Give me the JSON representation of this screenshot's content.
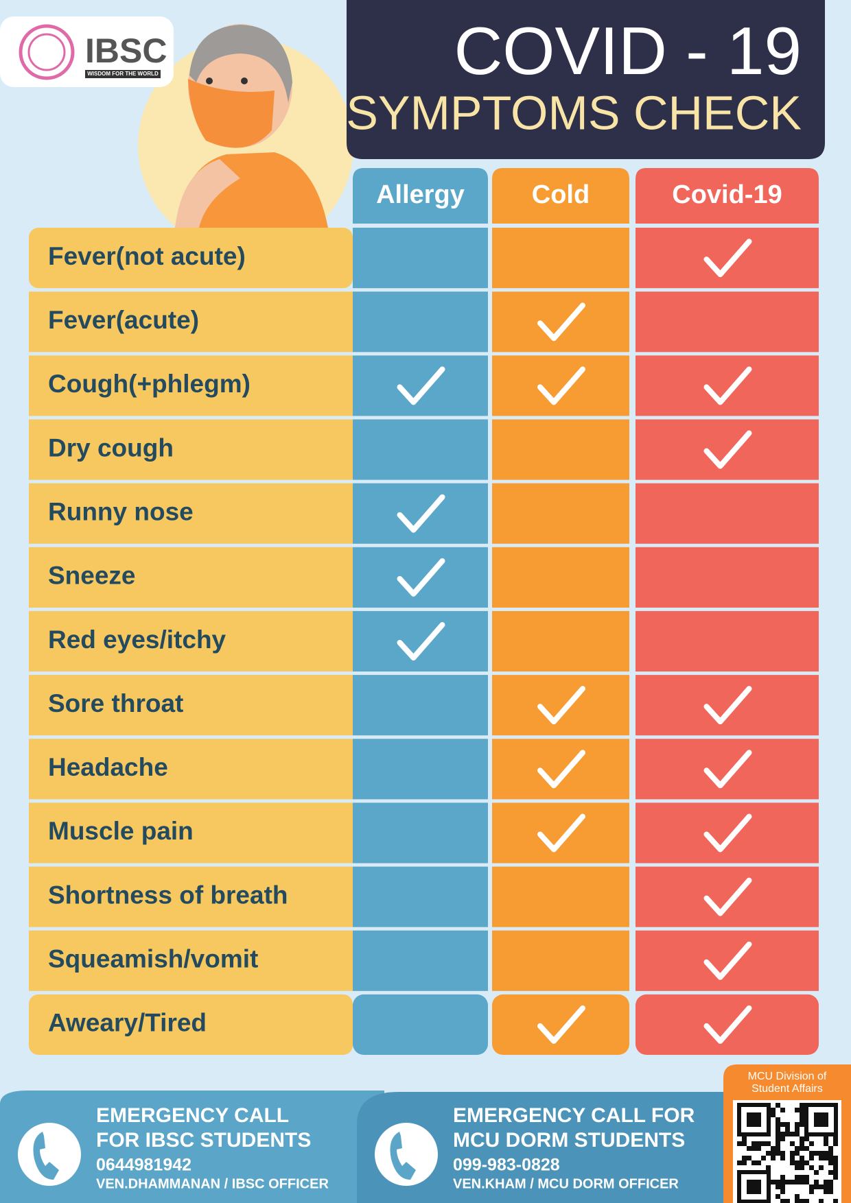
{
  "logo": {
    "name": "IBSC",
    "tagline": "WISDOM FOR THE WORLD"
  },
  "header": {
    "title": "COVID - 19",
    "subtitle": "SYMPTOMS CHECK"
  },
  "table": {
    "columns": [
      "Allergy",
      "Cold",
      "Covid-19"
    ],
    "rows": [
      {
        "label": "Fever(not acute)",
        "checks": [
          false,
          false,
          true
        ]
      },
      {
        "label": "Fever(acute)",
        "checks": [
          false,
          true,
          false
        ]
      },
      {
        "label": "Cough(+phlegm)",
        "checks": [
          true,
          true,
          true
        ]
      },
      {
        "label": "Dry cough",
        "checks": [
          false,
          false,
          true
        ]
      },
      {
        "label": "Runny nose",
        "checks": [
          true,
          false,
          false
        ]
      },
      {
        "label": "Sneeze",
        "checks": [
          true,
          false,
          false
        ]
      },
      {
        "label": "Red eyes/itchy",
        "checks": [
          true,
          false,
          false
        ]
      },
      {
        "label": "Sore throat",
        "checks": [
          false,
          true,
          true
        ]
      },
      {
        "label": "Headache",
        "checks": [
          false,
          true,
          true
        ]
      },
      {
        "label": "Muscle pain",
        "checks": [
          false,
          true,
          true
        ]
      },
      {
        "label": "Shortness of breath",
        "checks": [
          false,
          false,
          true
        ]
      },
      {
        "label": "Squeamish/vomit",
        "checks": [
          false,
          false,
          true
        ]
      },
      {
        "label": "Aweary/Tired",
        "checks": [
          false,
          true,
          true
        ]
      }
    ]
  },
  "footer": {
    "contacts": [
      {
        "heading": [
          "EMERGENCY CALL",
          "FOR IBSC STUDENTS"
        ],
        "phone": "0644981942",
        "officer": "VEN.DHAMMANAN / IBSC OFFICER"
      },
      {
        "heading": [
          "EMERGENCY CALL FOR",
          "MCU DORM STUDENTS"
        ],
        "phone": "099-983-0828",
        "officer": "VEN.KHAM / MCU DORM OFFICER"
      }
    ],
    "qr_caption": [
      "MCU Division of",
      "Student Affairs"
    ]
  }
}
